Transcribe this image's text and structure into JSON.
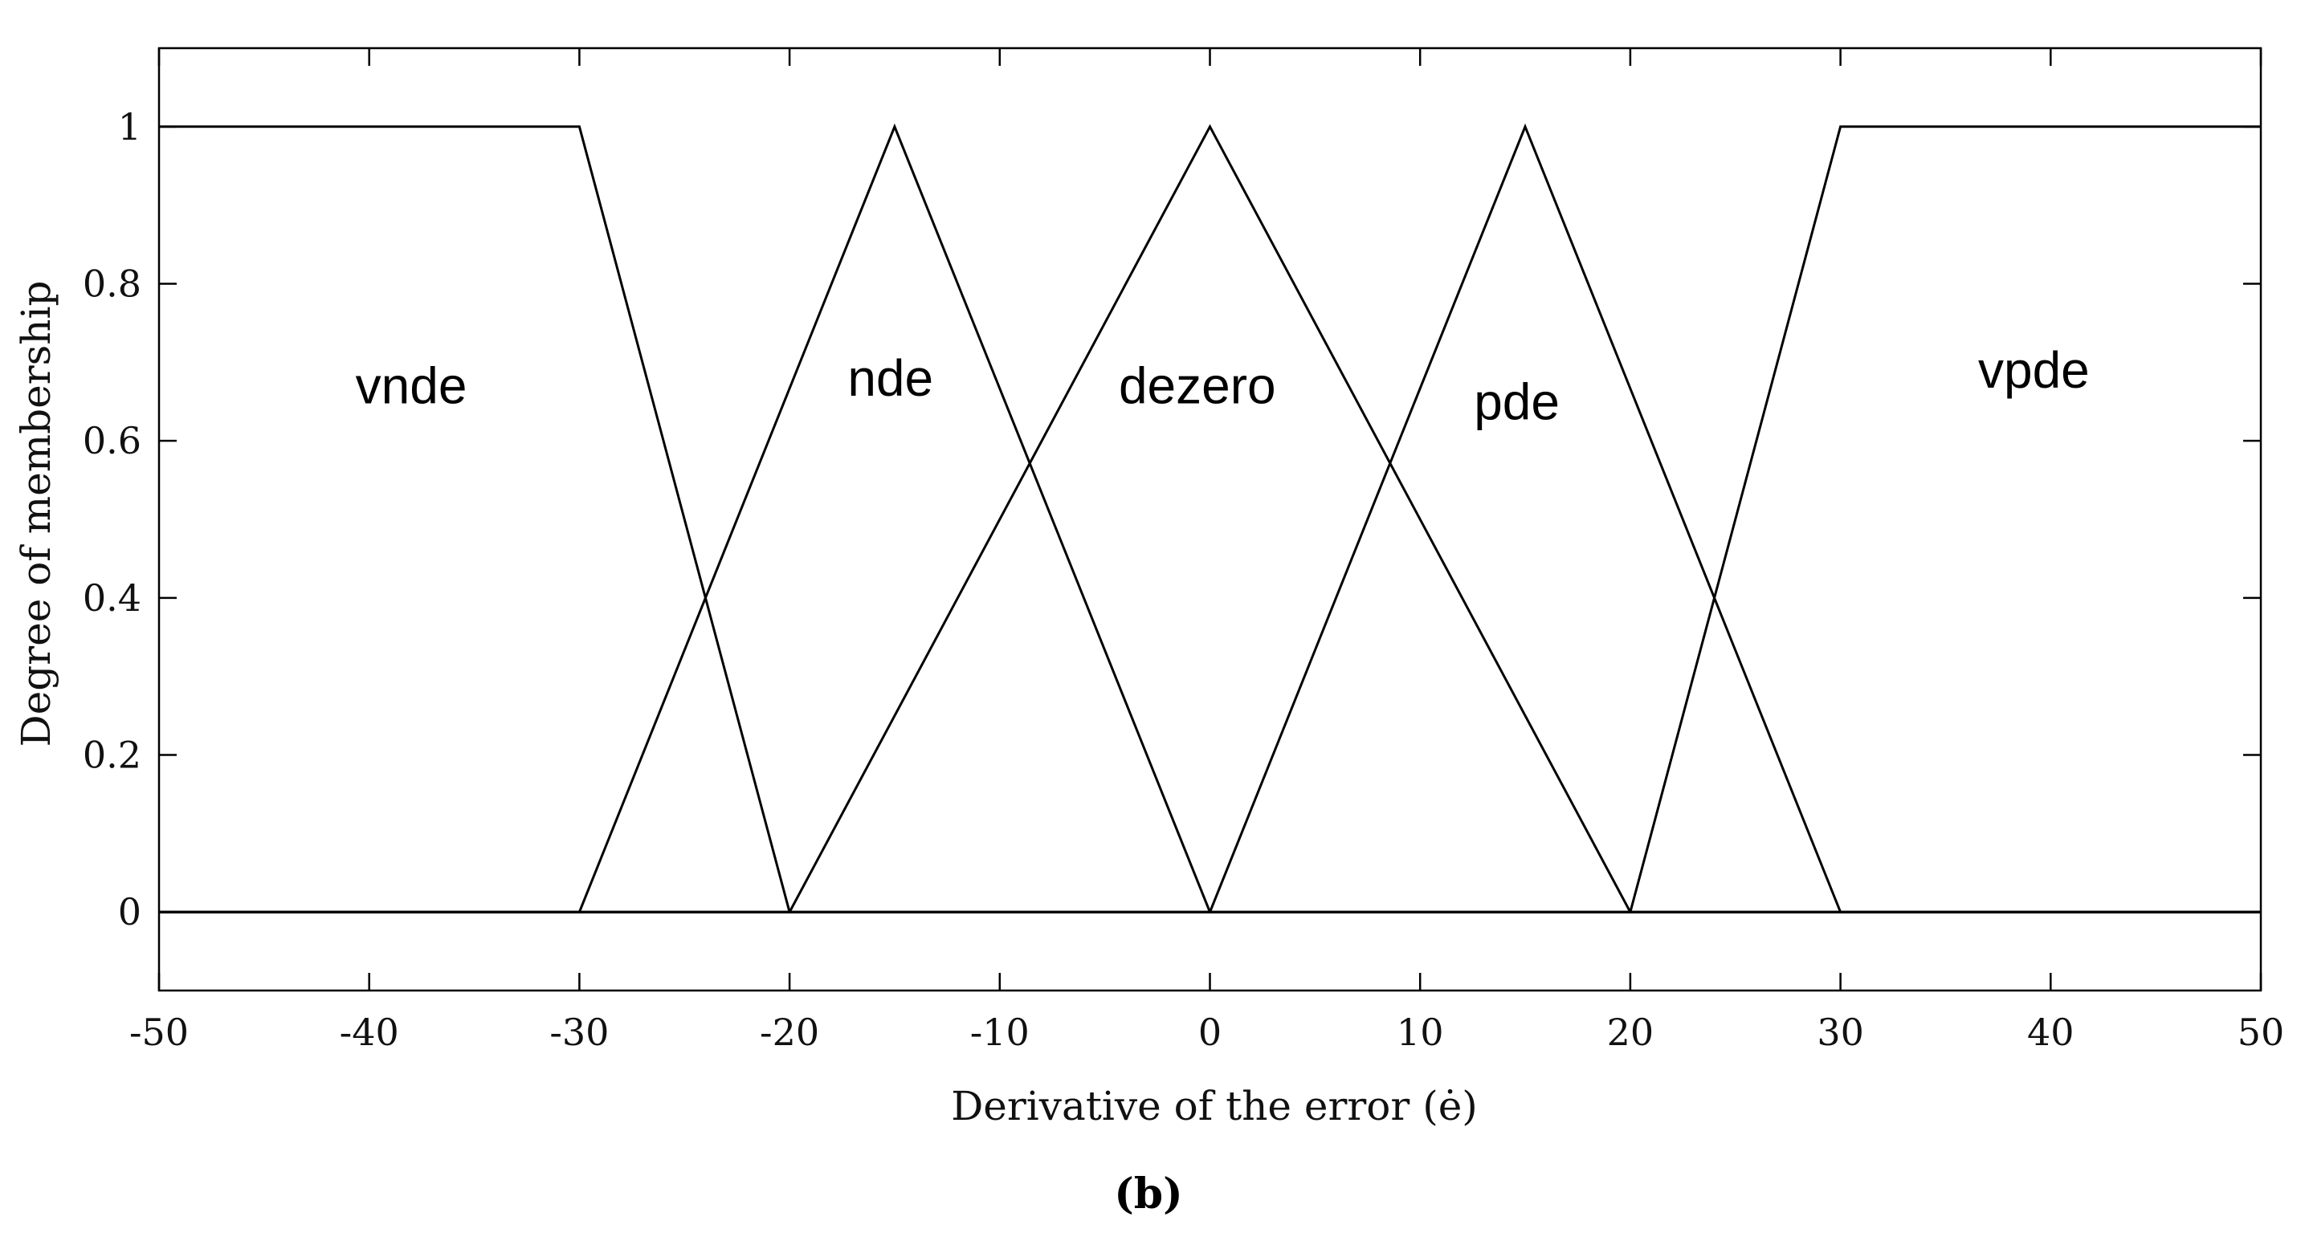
{
  "chart_data": {
    "type": "line",
    "xlabel": "Derivative of the error (ė)",
    "ylabel": "Degree of membership",
    "panel_label": "(b)",
    "xlim": [
      -50,
      50
    ],
    "ylim": [
      -0.1,
      1.1
    ],
    "xticks": [
      -50,
      -40,
      -30,
      -20,
      -10,
      0,
      10,
      20,
      30,
      40,
      50
    ],
    "xtick_labels": [
      "-50",
      "-40",
      "-30",
      "-20",
      "-10",
      "0",
      "10",
      "20",
      "30",
      "40",
      "50"
    ],
    "yticks": [
      0,
      0.2,
      0.4,
      0.6,
      0.8,
      1
    ],
    "ytick_labels": [
      "0",
      "0.2",
      "0.4",
      "0.6",
      "0.8",
      "1"
    ],
    "grid": false,
    "line_color": "#000000",
    "series": [
      {
        "name": "vnde",
        "x": [
          -50,
          -30,
          -20,
          50
        ],
        "y": [
          1,
          1,
          0,
          0
        ]
      },
      {
        "name": "nde",
        "x": [
          -50,
          -30,
          -15,
          0,
          50
        ],
        "y": [
          0,
          0,
          1,
          0,
          0
        ]
      },
      {
        "name": "dezero",
        "x": [
          -50,
          -20,
          0,
          20,
          50
        ],
        "y": [
          0,
          0,
          1,
          0,
          0
        ]
      },
      {
        "name": "pde",
        "x": [
          -50,
          0,
          15,
          30,
          50
        ],
        "y": [
          0,
          0,
          1,
          0,
          0
        ]
      },
      {
        "name": "vpde",
        "x": [
          -50,
          20,
          30,
          50
        ],
        "y": [
          0,
          0,
          1,
          1
        ]
      }
    ],
    "annotations": [
      {
        "text": "vnde",
        "x": -38,
        "y": 0.67
      },
      {
        "text": "nde",
        "x": -15.2,
        "y": 0.68
      },
      {
        "text": "dezero",
        "x": -0.6,
        "y": 0.67
      },
      {
        "text": "pde",
        "x": 14.6,
        "y": 0.65
      },
      {
        "text": "vpde",
        "x": 39.2,
        "y": 0.69
      }
    ]
  }
}
